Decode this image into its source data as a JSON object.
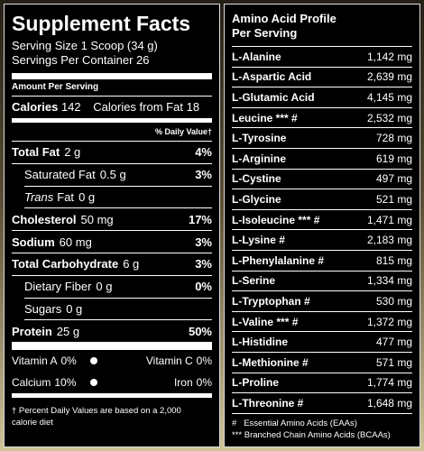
{
  "supplement_facts": {
    "title": "Supplement Facts",
    "serving_size": "Serving Size 1 Scoop (34 g)",
    "servings": "Servings Per Container 26",
    "amount_per_serving": "Amount Per Serving",
    "calories": {
      "label": "Calories",
      "value": "142",
      "from_fat_label": "Calories from Fat",
      "from_fat": "18"
    },
    "dv_header": "% Daily Value†",
    "nutrients": [
      {
        "name": "Total Fat",
        "amount": "2 g",
        "dv": "4%"
      },
      {
        "name": "Saturated Fat",
        "amount": "0.5 g",
        "dv": "3%"
      },
      {
        "name_italic": "Trans",
        "name": "Fat",
        "amount": "0 g"
      },
      {
        "name": "Cholesterol",
        "amount": "50 mg",
        "dv": "17%"
      },
      {
        "name": "Sodium",
        "amount": "60 mg",
        "dv": "3%"
      },
      {
        "name": "Total Carbohydrate",
        "amount": "6 g",
        "dv": "3%"
      },
      {
        "name": "Dietary Fiber",
        "amount": "0 g",
        "dv": "0%"
      },
      {
        "name": "Sugars",
        "amount": "0 g"
      },
      {
        "name": "Protein",
        "amount": "25 g",
        "dv": "50%"
      }
    ],
    "vitamins": [
      [
        {
          "name": "Vitamin A",
          "dv": "0%"
        },
        {
          "name": "Vitamin C",
          "dv": "0%"
        }
      ],
      [
        {
          "name": "Calcium",
          "dv": "10%"
        },
        {
          "name": "Iron",
          "dv": "0%"
        }
      ]
    ],
    "footnote": "† Percent Daily Values are based on a 2,000 calorie diet"
  },
  "amino_acids": {
    "title": "Amino Acid Profile",
    "subtitle": "Per Serving",
    "rows": [
      {
        "name": "L-Alanine",
        "amount": "1,142 mg"
      },
      {
        "name": "L-Aspartic Acid",
        "amount": "2,639 mg"
      },
      {
        "name": "L-Glutamic Acid",
        "amount": "4,145 mg"
      },
      {
        "name": "Leucine *** #",
        "amount": "2,532 mg"
      },
      {
        "name": "L-Tyrosine",
        "amount": "728 mg"
      },
      {
        "name": "L-Arginine",
        "amount": "619 mg"
      },
      {
        "name": "L-Cystine",
        "amount": "497 mg"
      },
      {
        "name": "L-Glycine",
        "amount": "521 mg"
      },
      {
        "name": "L-Isoleucine *** #",
        "amount": "1,471 mg"
      },
      {
        "name": "L-Lysine #",
        "amount": "2,183 mg"
      },
      {
        "name": "L-Phenylalanine #",
        "amount": "815 mg"
      },
      {
        "name": "L-Serine",
        "amount": "1,334 mg"
      },
      {
        "name": "L-Tryptophan #",
        "amount": "530 mg"
      },
      {
        "name": "L-Valine *** #",
        "amount": "1,372 mg"
      },
      {
        "name": "L-Histidine",
        "amount": "477 mg"
      },
      {
        "name": "L-Methionine #",
        "amount": "571 mg"
      },
      {
        "name": "L-Proline",
        "amount": "1,774 mg"
      },
      {
        "name": "L-Threonine #",
        "amount": "1,648 mg"
      }
    ],
    "legend": [
      "#   Essential Amino Acids (EAAs)",
      "*** Branched Chain Amino Acids (BCAAs)"
    ]
  }
}
